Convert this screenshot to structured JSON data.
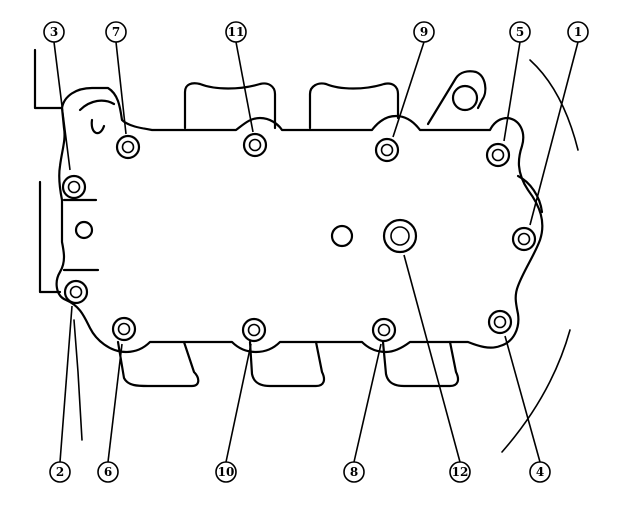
{
  "callouts": {
    "c1": "1",
    "c2": "2",
    "c3": "3",
    "c4": "4",
    "c5": "5",
    "c6": "6",
    "c7": "7",
    "c8": "8",
    "c9": "9",
    "c10": "10",
    "c11": "11",
    "c12": "12"
  }
}
